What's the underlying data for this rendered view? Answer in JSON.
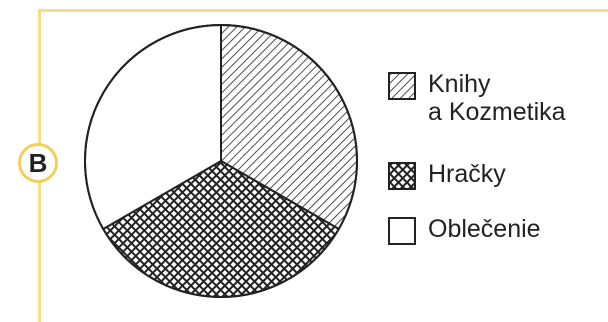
{
  "badge": {
    "label": "B"
  },
  "colors": {
    "frame": "#f7df8a",
    "badge_border": "#f2cf58",
    "ink": "#222222"
  },
  "chart_data": {
    "type": "pie",
    "title": "",
    "categories": [
      "Knihy\na Kozmetika",
      "Hračky",
      "Oblečenie"
    ],
    "values": [
      33.3,
      33.3,
      33.3
    ],
    "patterns": [
      "diagonal-hatch",
      "crosshatch-weave",
      "blank"
    ],
    "legend_position": "right"
  }
}
